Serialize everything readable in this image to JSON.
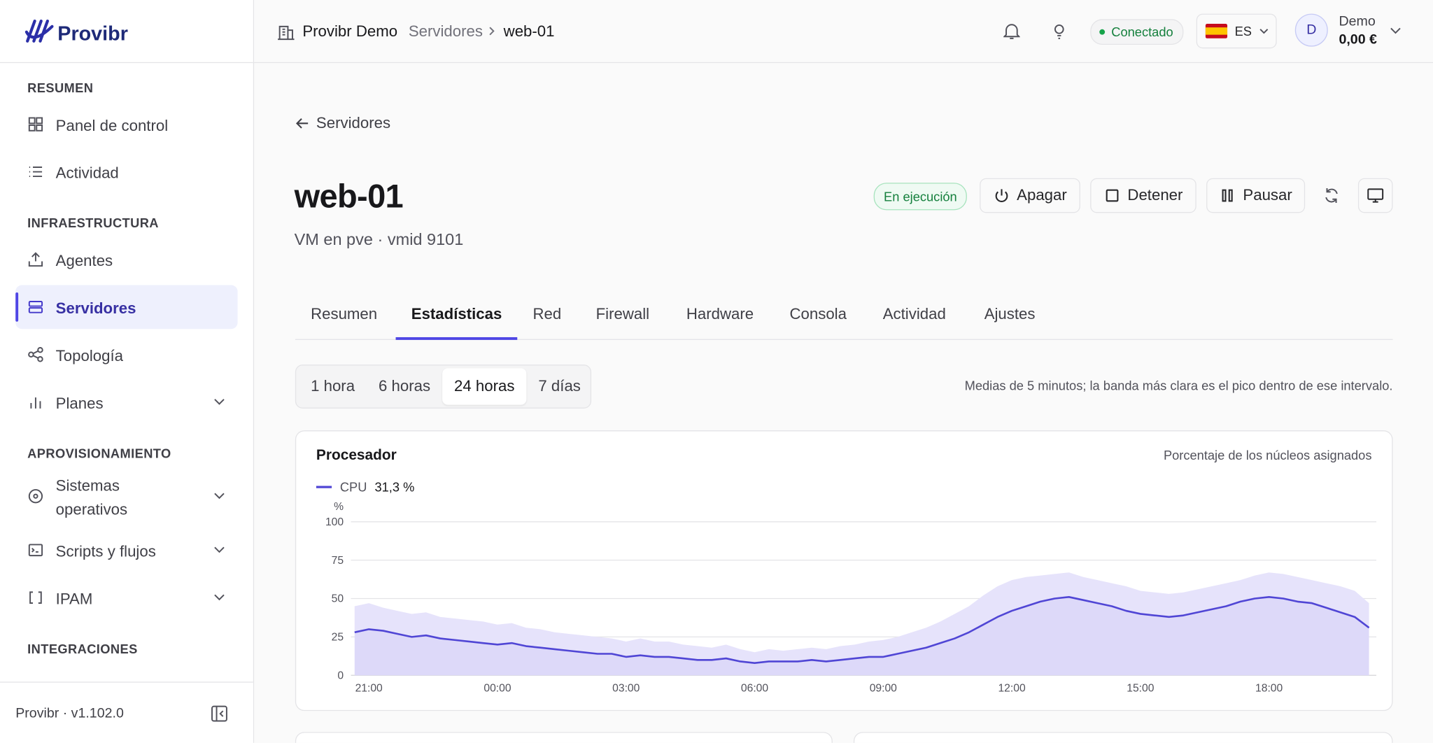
{
  "sidebar": {
    "brand": "Provibr",
    "sections": [
      {
        "title": "RESUMEN",
        "items": [
          {
            "label": "Panel de control",
            "icon": "grid"
          },
          {
            "label": "Actividad",
            "icon": "list"
          }
        ]
      },
      {
        "title": "INFRAESTRUCTURA",
        "items": [
          {
            "label": "Agentes",
            "icon": "upload"
          },
          {
            "label": "Servidores",
            "icon": "server",
            "active": true
          },
          {
            "label": "Topología",
            "icon": "share"
          },
          {
            "label": "Planes",
            "icon": "bars",
            "expandable": true
          }
        ]
      },
      {
        "title": "APROVISIONAMIENTO",
        "items": [
          {
            "label": "Sistemas operativos",
            "icon": "disc",
            "expandable": true
          },
          {
            "label": "Scripts y flujos",
            "icon": "term",
            "expandable": true
          },
          {
            "label": "IPAM",
            "icon": "brackets",
            "expandable": true
          }
        ]
      },
      {
        "title": "INTEGRACIONES",
        "items": []
      }
    ],
    "footer": "Provibr · v1.102.0"
  },
  "header": {
    "org": "Provibr Demo",
    "crumb": "Servidores",
    "current": "web-01",
    "status": "Conectado",
    "language": "ES",
    "avatar": "D",
    "user": "Demo",
    "balance": "0,00 €"
  },
  "server": {
    "back": "Servidores",
    "name": "web-01",
    "subtitle": "VM en pve · vmid 9101",
    "state": "En ejecución",
    "actions": [
      "Apagar",
      "Detener",
      "Pausar"
    ]
  },
  "tabs": {
    "items": [
      "Resumen",
      "Estadísticas",
      "Red",
      "Firewall",
      "Hardware",
      "Consola",
      "Actividad",
      "Ajustes"
    ],
    "active": 1
  },
  "ranges": {
    "items": [
      "1 hora",
      "6 horas",
      "24 horas",
      "7 días"
    ],
    "active": 2
  },
  "note": "Medias de 5 minutos; la banda más clara es el pico dentro de ese intervalo.",
  "chart_data": {
    "type": "area",
    "title": "Procesador",
    "subtitle": "Porcentaje de los núcleos asignados",
    "y_label": "%",
    "legend_value": "31,3 %",
    "categories": [
      null,
      "21:00",
      null,
      null,
      null,
      null,
      null,
      null,
      null,
      null,
      "00:00",
      null,
      null,
      null,
      null,
      null,
      null,
      null,
      null,
      "03:00",
      null,
      null,
      null,
      null,
      null,
      null,
      null,
      null,
      "06:00",
      null,
      null,
      null,
      null,
      null,
      null,
      null,
      null,
      "09:00",
      null,
      null,
      null,
      null,
      null,
      null,
      null,
      null,
      "12:00",
      null,
      null,
      null,
      null,
      null,
      null,
      null,
      null,
      "15:00",
      null,
      null,
      null,
      null,
      null,
      null,
      null,
      null,
      "18:00",
      null,
      null,
      null,
      null,
      null,
      null,
      null
    ],
    "series": [
      {
        "name": "CPU",
        "color": "#5046d5",
        "values": [
          28,
          30,
          29,
          27,
          25,
          26,
          24,
          23,
          22,
          21,
          20,
          21,
          19,
          18,
          17,
          16,
          15,
          14,
          14,
          12,
          13,
          12,
          12,
          11,
          10,
          10,
          11,
          9,
          8,
          9,
          9,
          9,
          10,
          9,
          10,
          11,
          12,
          12,
          14,
          16,
          18,
          21,
          24,
          28,
          33,
          38,
          42,
          45,
          48,
          50,
          51,
          49,
          47,
          45,
          42,
          40,
          39,
          38,
          39,
          41,
          43,
          45,
          48,
          50,
          51,
          50,
          48,
          47,
          44,
          41,
          38,
          31
        ]
      },
      {
        "color": "#e6e3fb",
        "values": [
          45,
          47,
          44,
          42,
          40,
          41,
          38,
          37,
          36,
          35,
          33,
          34,
          31,
          30,
          28,
          27,
          26,
          25,
          24,
          22,
          24,
          22,
          22,
          20,
          19,
          18,
          20,
          17,
          15,
          17,
          16,
          17,
          18,
          17,
          19,
          20,
          22,
          23,
          25,
          28,
          31,
          35,
          40,
          45,
          52,
          58,
          62,
          64,
          65,
          66,
          67,
          64,
          62,
          60,
          58,
          55,
          54,
          53,
          54,
          56,
          58,
          60,
          62,
          65,
          67,
          66,
          64,
          62,
          60,
          58,
          55,
          47
        ]
      }
    ],
    "ylim": [
      0,
      100
    ],
    "yticks": [
      0,
      25,
      50,
      75,
      100
    ],
    "grid": true
  }
}
